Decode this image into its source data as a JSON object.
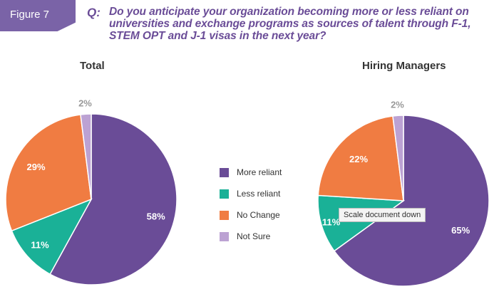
{
  "figure_label": "Figure 7",
  "question_prefix": "Q:",
  "question_text": "Do you anticipate your organization becoming more or less reliant on universities and exchange programs as sources of talent through F-1, STEM OPT and J-1 visas in the next year?",
  "tooltip": "Scale document down",
  "colors": {
    "more_reliant": "#6a4c97",
    "less_reliant": "#1ab197",
    "no_change": "#f07c42",
    "not_sure": "#bca2d3",
    "accent": "#7a63a7"
  },
  "chart_data": [
    {
      "type": "pie",
      "title": "Total",
      "categories": [
        "More reliant",
        "Less reliant",
        "No Change",
        "Not Sure"
      ],
      "values": [
        58,
        11,
        29,
        2
      ],
      "labels": [
        "58%",
        "11%",
        "29%",
        "2%"
      ]
    },
    {
      "type": "pie",
      "title": "Hiring Managers",
      "categories": [
        "More reliant",
        "Less reliant",
        "No Change",
        "Not Sure"
      ],
      "values": [
        65,
        11,
        22,
        2
      ],
      "labels": [
        "65%",
        "11%",
        "22%",
        "2%"
      ]
    }
  ],
  "legend": [
    {
      "label": "More reliant",
      "color": "#6a4c97"
    },
    {
      "label": "Less reliant",
      "color": "#1ab197"
    },
    {
      "label": "No Change",
      "color": "#f07c42"
    },
    {
      "label": "Not Sure",
      "color": "#bca2d3"
    }
  ]
}
